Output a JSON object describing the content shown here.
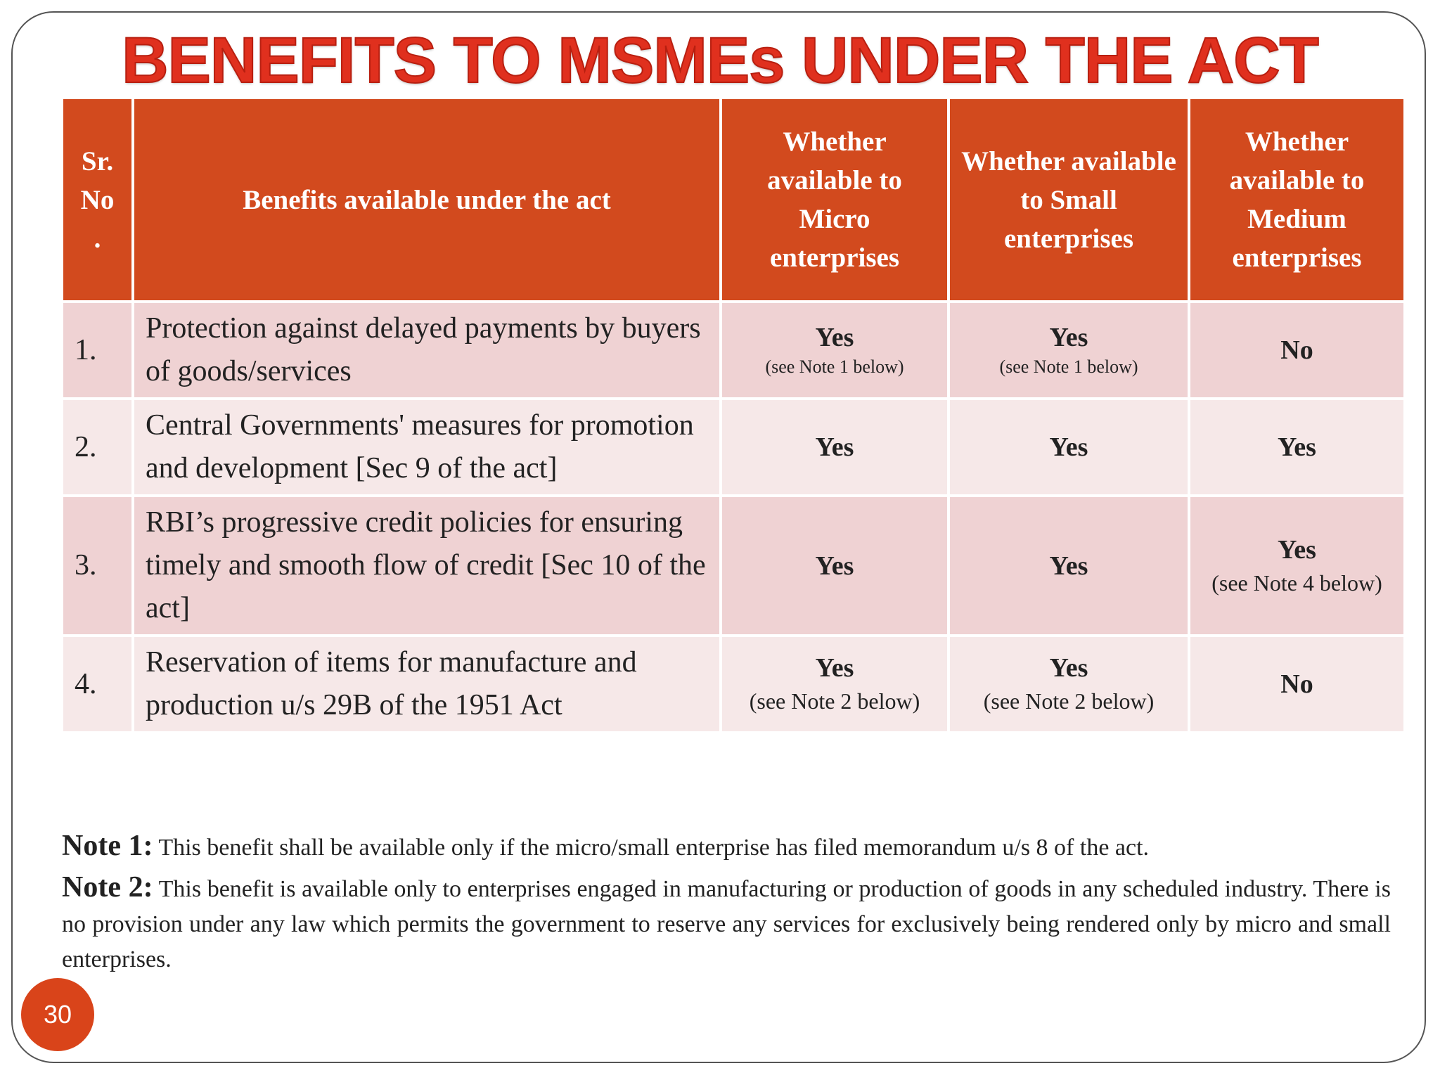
{
  "title": "BENEFITS TO MSMEs UNDER THE ACT",
  "table": {
    "header": [
      "Sr. No .",
      "Benefits available under the act",
      "Whether available to Micro enterprises",
      "Whether available to Small enterprises",
      "Whether available to Medium enterprises"
    ],
    "rows": [
      [
        "1.",
        "Protection against delayed payments by buyers of goods/services",
        {
          "text": "Yes",
          "note": "(see Note 1 below)"
        },
        {
          "text": "Yes",
          "note": "(see Note 1 below)"
        },
        {
          "text": "No"
        }
      ],
      [
        "2.",
        "Central Governments' measures for promotion and development [Sec 9 of the act]",
        {
          "text": "Yes"
        },
        {
          "text": "Yes"
        },
        {
          "text": "Yes"
        }
      ],
      [
        "3.",
        "RBI’s progressive credit policies for ensuring timely and smooth flow of credit [Sec 10 of the act]",
        {
          "text": "Yes"
        },
        {
          "text": "Yes"
        },
        {
          "text": "Yes",
          "note": "(see Note 4 below)"
        }
      ],
      [
        "4.",
        "Reservation of items for manufacture and production u/s 29B of the 1951 Act",
        {
          "text": "Yes",
          "note": "(see Note 2 below)"
        },
        {
          "text": "Yes",
          "note": "(see Note 2 below)"
        },
        {
          "text": "No"
        }
      ]
    ]
  },
  "notes": [
    {
      "label": "Note 1:",
      "text": "This benefit shall be available only if the micro/small enterprise has filed memorandum u/s 8 of the act."
    },
    {
      "label": "Note 2:",
      "text": "This benefit is available only to enterprises engaged in manufacturing or production of goods in any scheduled industry. There is no provision under any law which permits the government to reserve any services for exclusively being rendered only by micro and small enterprises."
    }
  ],
  "page_number": "30"
}
